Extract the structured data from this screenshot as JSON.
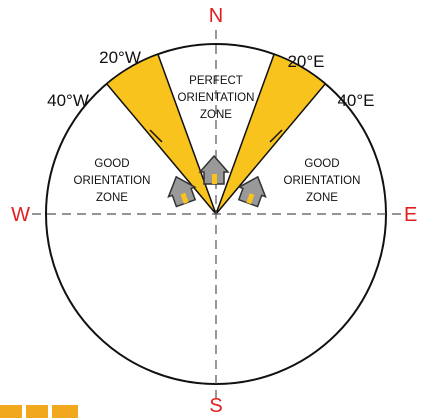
{
  "compass": {
    "north": "N",
    "south": "S",
    "east": "E",
    "west": "W"
  },
  "angles": {
    "w20": "20°W",
    "w40": "40°W",
    "e20": "20°E",
    "e40": "40°E"
  },
  "zones": {
    "perfect": [
      "PERFECT",
      "ORIENTATION",
      "ZONE"
    ],
    "good_west": [
      "GOOD",
      "ORIENTATION",
      "ZONE"
    ],
    "good_east": [
      "GOOD",
      "ORIENTATION",
      "ZONE"
    ]
  }
}
